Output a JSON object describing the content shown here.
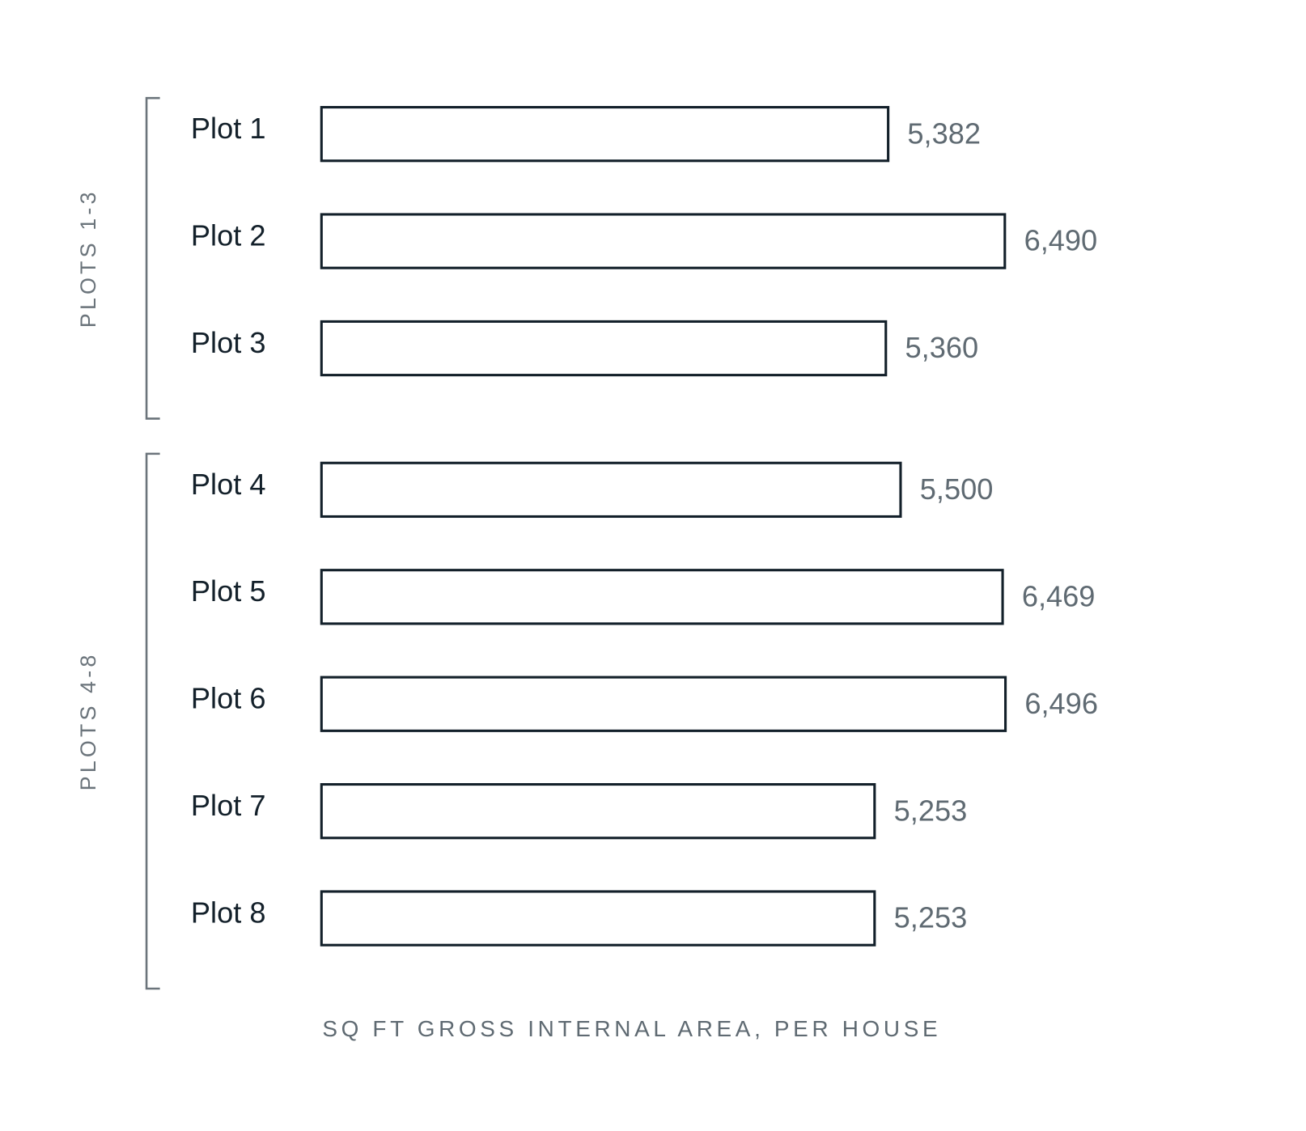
{
  "chart_data": {
    "type": "bar",
    "orientation": "horizontal",
    "categories": [
      "Plot 1",
      "Plot 2",
      "Plot 3",
      "Plot 4",
      "Plot 5",
      "Plot 6",
      "Plot 7",
      "Plot 8"
    ],
    "values": [
      5382,
      6490,
      5360,
      5500,
      6469,
      6496,
      5253,
      5253
    ],
    "value_labels": [
      "5,382",
      "6,490",
      "5,360",
      "5,500",
      "6,469",
      "6,496",
      "5,253",
      "5,253"
    ],
    "groups": [
      {
        "label": "PLOTS 1-3",
        "count": 3
      },
      {
        "label": "PLOTS 4-8",
        "count": 5
      }
    ],
    "x_label": "SQ FT GROSS INTERNAL AREA, PER HOUSE",
    "color": "#ffffff",
    "edge_color": "#13202a"
  }
}
